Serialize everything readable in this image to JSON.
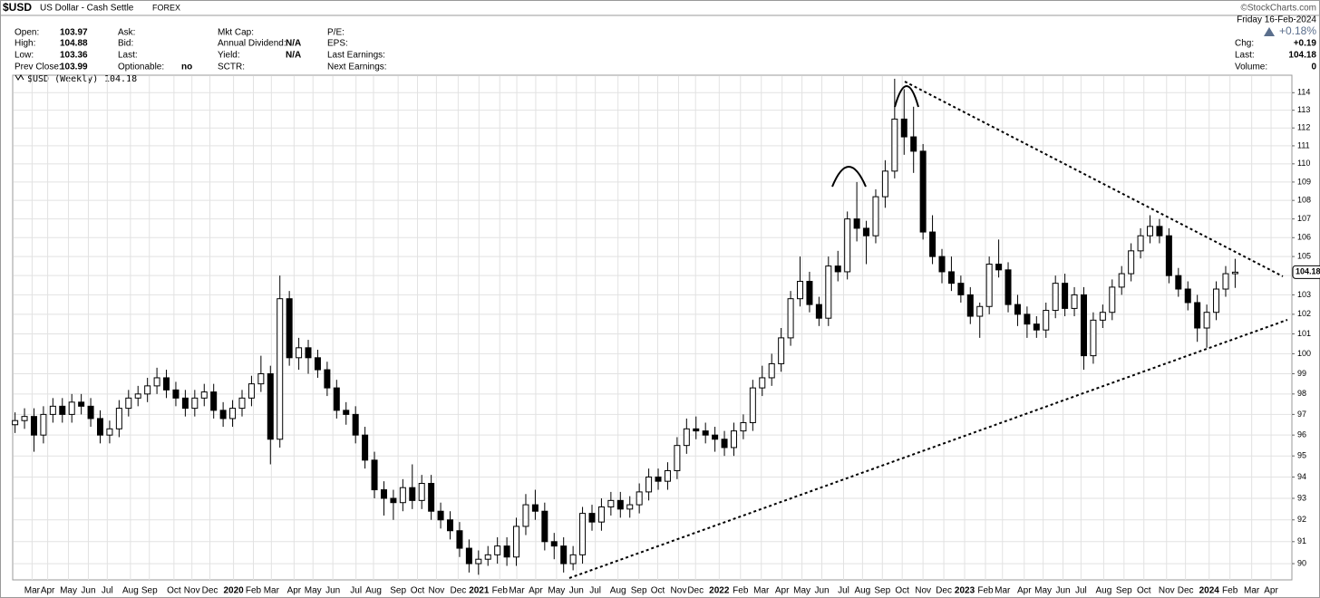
{
  "header": {
    "symbol": "$USD",
    "name": "US Dollar - Cash Settle",
    "exchange": "FOREX",
    "source": "©StockCharts.com",
    "date": "Friday 16-Feb-2024",
    "change_pct": "+0.18%",
    "right_fields": [
      {
        "label": "Chg:",
        "value": "+0.19"
      },
      {
        "label": "Last:",
        "value": "104.18"
      },
      {
        "label": "Volume:",
        "value": "0"
      }
    ]
  },
  "quote": [
    [
      {
        "label": "Open:",
        "value": "103.97"
      },
      {
        "label": "High:",
        "value": "104.88"
      },
      {
        "label": "Low:",
        "value": "103.36"
      },
      {
        "label": "Prev Close:",
        "value": "103.99"
      }
    ],
    [
      {
        "label": "Ask:"
      },
      {
        "label": "Bid:"
      },
      {
        "label": "Last:"
      },
      {
        "label": "Optionable:",
        "value": "no"
      }
    ],
    [
      {
        "label": "Mkt Cap:"
      },
      {
        "label": "Annual Dividend:",
        "value": "N/A"
      },
      {
        "label": "Yield:",
        "value": "N/A"
      },
      {
        "label": "SCTR:"
      }
    ],
    [
      {
        "label": "P/E:"
      },
      {
        "label": "EPS:"
      },
      {
        "label": "Last Earnings:"
      },
      {
        "label": "Next Earnings:"
      }
    ]
  ],
  "chart_data": {
    "type": "candlestick",
    "legend": "$USD (Weekly)",
    "log_scale": true,
    "grid": true,
    "up_color": "#ffffff",
    "down_color": "#000000",
    "line_color": "#000000",
    "x": [
      0,
      2,
      4,
      6,
      8,
      10,
      12,
      14,
      16,
      18,
      20,
      22,
      24,
      26,
      28,
      30,
      32,
      34,
      36,
      38,
      40,
      42,
      44,
      46,
      48,
      50,
      52,
      54,
      56,
      58,
      60,
      62,
      64,
      66,
      68,
      70,
      72,
      74,
      76,
      78,
      80,
      82,
      84,
      86,
      88,
      90,
      92,
      94,
      96,
      98,
      100,
      102,
      104,
      106,
      108,
      110,
      112,
      114,
      116,
      118,
      120,
      122,
      124,
      126,
      128,
      130,
      132,
      134,
      136,
      138,
      140,
      142,
      144,
      146,
      148,
      150,
      152,
      154,
      156,
      158,
      160,
      162,
      164,
      166,
      168,
      170,
      172,
      174,
      176,
      178,
      180,
      182,
      184,
      186,
      188,
      190,
      192,
      194,
      196,
      198,
      200,
      202,
      204,
      206,
      208,
      210,
      212,
      214,
      216,
      218,
      220,
      222,
      224,
      226,
      228,
      230,
      232,
      234,
      236,
      238,
      240,
      242,
      244,
      246,
      248,
      250,
      252,
      254,
      256,
      258
    ],
    "open": [
      96.5,
      96.7,
      96.9,
      96.0,
      97.0,
      97.4,
      97.0,
      97.6,
      97.4,
      96.8,
      96.0,
      96.3,
      97.3,
      97.8,
      98.0,
      98.4,
      98.8,
      98.2,
      97.8,
      97.3,
      97.8,
      98.1,
      97.2,
      96.8,
      97.3,
      97.8,
      98.5,
      99.0,
      95.8,
      102.8,
      99.8,
      100.3,
      99.8,
      99.2,
      98.3,
      97.2,
      97.0,
      96.0,
      94.8,
      93.4,
      93.0,
      92.8,
      93.5,
      92.9,
      93.7,
      92.4,
      92.0,
      91.5,
      90.7,
      90.0,
      90.2,
      90.4,
      90.8,
      90.3,
      91.7,
      92.7,
      92.4,
      91.0,
      90.8,
      90.0,
      90.4,
      92.3,
      91.9,
      92.6,
      92.9,
      92.5,
      92.7,
      93.3,
      94.0,
      93.8,
      94.3,
      95.5,
      96.3,
      96.2,
      96.0,
      95.8,
      95.4,
      96.2,
      96.6,
      98.3,
      98.8,
      99.5,
      100.8,
      102.8,
      103.7,
      102.5,
      101.8,
      104.5,
      104.2,
      107.0,
      106.5,
      106.1,
      108.2,
      109.6,
      112.5,
      111.5,
      110.7,
      106.3,
      105.0,
      104.2,
      103.6,
      103.0,
      101.9,
      102.4,
      104.6,
      104.3,
      102.5,
      102.0,
      101.5,
      101.2,
      102.2,
      103.6,
      102.3,
      103.0,
      99.9,
      101.7,
      102.1,
      103.4,
      104.1,
      105.3,
      106.1,
      106.6,
      106.1,
      104.0,
      103.3,
      102.6,
      101.3,
      102.1,
      103.3,
      104.1
    ],
    "high": [
      97.1,
      97.3,
      97.3,
      97.4,
      97.8,
      97.8,
      98.0,
      98.0,
      97.8,
      97.2,
      96.7,
      97.7,
      98.2,
      98.4,
      98.8,
      99.3,
      99.2,
      98.6,
      98.2,
      98.2,
      98.5,
      98.5,
      97.6,
      97.7,
      98.2,
      98.9,
      99.9,
      99.4,
      104.0,
      103.2,
      100.8,
      100.7,
      100.2,
      99.6,
      98.7,
      97.6,
      97.4,
      96.4,
      95.2,
      93.8,
      93.4,
      93.9,
      94.6,
      94.1,
      94.1,
      92.8,
      92.4,
      91.9,
      91.1,
      90.6,
      90.8,
      91.2,
      91.2,
      92.1,
      93.2,
      93.4,
      92.8,
      91.4,
      91.2,
      90.8,
      92.6,
      92.7,
      93.0,
      93.3,
      93.3,
      93.1,
      93.7,
      94.4,
      94.4,
      94.7,
      95.9,
      96.8,
      96.9,
      96.6,
      96.4,
      96.2,
      96.6,
      97.0,
      98.7,
      99.4,
      100.0,
      101.3,
      103.2,
      105.0,
      104.2,
      102.9,
      105.0,
      105.3,
      107.4,
      109.0,
      106.9,
      108.6,
      110.2,
      114.8,
      114.2,
      113.2,
      111.1,
      107.2,
      105.4,
      105.0,
      104.0,
      103.4,
      102.6,
      105.0,
      105.9,
      104.7,
      103.0,
      102.4,
      101.9,
      102.6,
      104.0,
      104.1,
      103.4,
      103.4,
      102.1,
      102.5,
      103.8,
      104.5,
      105.7,
      106.5,
      107.2,
      107.0,
      106.5,
      104.4,
      103.7,
      103.0,
      102.5,
      103.7,
      104.5,
      104.88
    ],
    "low": [
      96.1,
      96.3,
      95.2,
      95.6,
      96.6,
      96.6,
      96.6,
      97.0,
      96.4,
      95.6,
      95.6,
      95.9,
      96.9,
      97.4,
      97.6,
      98.0,
      97.8,
      97.4,
      96.9,
      96.9,
      97.4,
      96.8,
      96.4,
      96.4,
      96.9,
      97.4,
      98.1,
      94.6,
      95.4,
      99.4,
      99.2,
      99.0,
      98.8,
      97.9,
      96.8,
      96.5,
      95.6,
      94.4,
      93.0,
      92.2,
      92.0,
      92.4,
      92.5,
      92.5,
      92.0,
      91.6,
      91.1,
      90.3,
      89.6,
      89.5,
      89.9,
      90.0,
      89.9,
      89.9,
      91.3,
      92.0,
      90.6,
      90.2,
      89.6,
      89.7,
      90.0,
      91.5,
      91.5,
      92.2,
      92.1,
      92.1,
      92.3,
      92.9,
      93.4,
      93.4,
      93.9,
      95.1,
      95.8,
      95.6,
      95.2,
      95.0,
      95.0,
      95.8,
      96.2,
      97.9,
      98.4,
      99.1,
      100.4,
      102.4,
      102.1,
      101.4,
      101.4,
      103.7,
      103.8,
      105.8,
      104.6,
      105.7,
      107.6,
      109.2,
      110.5,
      109.5,
      105.9,
      104.6,
      103.6,
      103.2,
      102.6,
      101.5,
      100.8,
      102.0,
      103.9,
      102.1,
      101.4,
      100.8,
      100.8,
      100.8,
      101.8,
      101.9,
      101.9,
      99.2,
      99.5,
      101.3,
      101.7,
      103.0,
      103.7,
      104.9,
      105.7,
      105.7,
      103.6,
      102.9,
      102.2,
      100.6,
      100.3,
      101.7,
      102.9,
      103.36
    ],
    "close": [
      96.7,
      96.9,
      96.0,
      97.0,
      97.4,
      97.0,
      97.6,
      97.4,
      96.8,
      96.0,
      96.3,
      97.3,
      97.8,
      98.0,
      98.4,
      98.8,
      98.2,
      97.8,
      97.3,
      97.8,
      98.1,
      97.2,
      96.8,
      97.3,
      97.8,
      98.5,
      99.0,
      95.8,
      102.8,
      99.8,
      100.3,
      99.8,
      99.2,
      98.3,
      97.2,
      97.0,
      96.0,
      94.8,
      93.4,
      93.0,
      92.8,
      93.5,
      92.9,
      93.7,
      92.4,
      92.0,
      91.5,
      90.7,
      90.0,
      90.2,
      90.4,
      90.8,
      90.3,
      91.7,
      92.7,
      92.4,
      91.0,
      90.8,
      90.0,
      90.4,
      92.3,
      91.9,
      92.6,
      92.9,
      92.5,
      92.7,
      93.3,
      94.0,
      93.8,
      94.3,
      95.5,
      96.3,
      96.2,
      96.0,
      95.8,
      95.4,
      96.2,
      96.6,
      98.3,
      98.8,
      99.5,
      100.8,
      102.8,
      103.7,
      102.5,
      101.8,
      104.5,
      104.2,
      107.0,
      106.5,
      106.1,
      108.2,
      109.6,
      112.5,
      111.5,
      110.7,
      106.3,
      105.0,
      104.2,
      103.6,
      103.0,
      101.9,
      102.4,
      104.6,
      104.3,
      102.5,
      102.0,
      101.5,
      101.2,
      102.2,
      103.6,
      102.3,
      103.0,
      99.9,
      101.7,
      102.1,
      103.4,
      104.1,
      105.3,
      106.1,
      106.6,
      106.1,
      104.0,
      103.3,
      102.6,
      101.3,
      102.1,
      103.3,
      104.1,
      104.18
    ],
    "xlim": [
      -0.5,
      270
    ],
    "xticks": [
      {
        "value": 3.6,
        "label": "Mar"
      },
      {
        "value": 6.9,
        "label": "Apr"
      },
      {
        "value": 11.3,
        "label": "May"
      },
      {
        "value": 15.5,
        "label": "Jun"
      },
      {
        "value": 19.5,
        "label": "Jul"
      },
      {
        "value": 24.4,
        "label": "Aug"
      },
      {
        "value": 28.4,
        "label": "Sep"
      },
      {
        "value": 33.6,
        "label": "Oct"
      },
      {
        "value": 37.4,
        "label": "Nov"
      },
      {
        "value": 41.2,
        "label": "Dec"
      },
      {
        "value": 46.2,
        "label": "2020"
      },
      {
        "value": 50.4,
        "label": "Feb"
      },
      {
        "value": 54.2,
        "label": "Mar"
      },
      {
        "value": 59,
        "label": "Apr"
      },
      {
        "value": 63,
        "label": "May"
      },
      {
        "value": 67.2,
        "label": "Jun"
      },
      {
        "value": 72.1,
        "label": "Jul"
      },
      {
        "value": 75.8,
        "label": "Aug"
      },
      {
        "value": 81,
        "label": "Sep"
      },
      {
        "value": 85.1,
        "label": "Oct"
      },
      {
        "value": 89.1,
        "label": "Nov"
      },
      {
        "value": 93.7,
        "label": "Dec"
      },
      {
        "value": 98.1,
        "label": "2021"
      },
      {
        "value": 102.5,
        "label": "Feb"
      },
      {
        "value": 106.1,
        "label": "Mar"
      },
      {
        "value": 110.1,
        "label": "Apr"
      },
      {
        "value": 114.5,
        "label": "May"
      },
      {
        "value": 118.7,
        "label": "Jun"
      },
      {
        "value": 122.7,
        "label": "Jul"
      },
      {
        "value": 127.5,
        "label": "Aug"
      },
      {
        "value": 131.9,
        "label": "Sep"
      },
      {
        "value": 135.9,
        "label": "Oct"
      },
      {
        "value": 140.3,
        "label": "Nov"
      },
      {
        "value": 143.9,
        "label": "Dec"
      },
      {
        "value": 148.9,
        "label": "2022"
      },
      {
        "value": 153.4,
        "label": "Feb"
      },
      {
        "value": 157.8,
        "label": "Mar"
      },
      {
        "value": 162.2,
        "label": "Apr"
      },
      {
        "value": 166.4,
        "label": "May"
      },
      {
        "value": 170.6,
        "label": "Jun"
      },
      {
        "value": 175.2,
        "label": "Jul"
      },
      {
        "value": 179.2,
        "label": "Aug"
      },
      {
        "value": 183.4,
        "label": "Sep"
      },
      {
        "value": 187.6,
        "label": "Oct"
      },
      {
        "value": 192,
        "label": "Nov"
      },
      {
        "value": 196.4,
        "label": "Dec"
      },
      {
        "value": 200.8,
        "label": "2023"
      },
      {
        "value": 205.2,
        "label": "Feb"
      },
      {
        "value": 208.8,
        "label": "Mar"
      },
      {
        "value": 213.4,
        "label": "Apr"
      },
      {
        "value": 217.4,
        "label": "May"
      },
      {
        "value": 221.6,
        "label": "Jun"
      },
      {
        "value": 225.4,
        "label": "Jul"
      },
      {
        "value": 230.2,
        "label": "Aug"
      },
      {
        "value": 234.5,
        "label": "Sep"
      },
      {
        "value": 238.7,
        "label": "Oct"
      },
      {
        "value": 243.5,
        "label": "Nov"
      },
      {
        "value": 247.5,
        "label": "Dec"
      },
      {
        "value": 252.5,
        "label": "2024"
      },
      {
        "value": 256.9,
        "label": "Feb"
      },
      {
        "value": 261.5,
        "label": "Mar"
      },
      {
        "value": 265.6,
        "label": "Apr"
      }
    ],
    "ylim": [
      89.27,
      114.9
    ],
    "yticks": [
      90,
      91,
      92,
      93,
      94,
      95,
      96,
      97,
      98,
      99,
      100,
      101,
      102,
      103,
      104,
      105,
      106,
      107,
      108,
      109,
      110,
      111,
      112,
      113,
      114
    ]
  }
}
